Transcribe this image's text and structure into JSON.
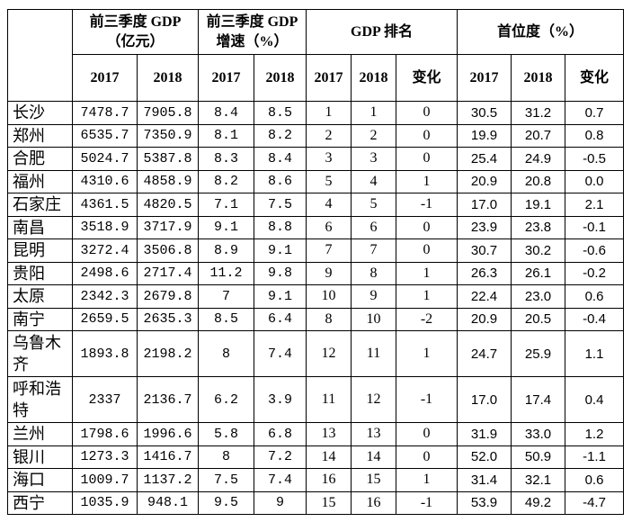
{
  "table": {
    "header": {
      "groups": [
        {
          "lines": [
            "前三季度 GDP",
            "（亿元）"
          ]
        },
        {
          "lines": [
            "前三季度 GDP",
            "增速（%）"
          ]
        },
        {
          "lines": [
            "GDP 排名"
          ]
        },
        {
          "lines": [
            "首位度（%）"
          ]
        }
      ],
      "columns": [
        "2017",
        "2018",
        "2017",
        "2018",
        "2017",
        "2018",
        "变化",
        "2017",
        "2018",
        "变化"
      ]
    },
    "rows": [
      [
        "长沙",
        "7478.7",
        "7905.8",
        "8.4",
        "8.5",
        "1",
        "1",
        "0",
        "30.5",
        "31.2",
        "0.7"
      ],
      [
        "郑州",
        "6535.7",
        "7350.9",
        "8.1",
        "8.2",
        "2",
        "2",
        "0",
        "19.9",
        "20.7",
        "0.8"
      ],
      [
        "合肥",
        "5024.7",
        "5387.8",
        "8.3",
        "8.4",
        "3",
        "3",
        "0",
        "25.4",
        "24.9",
        "-0.5"
      ],
      [
        "福州",
        "4310.6",
        "4858.9",
        "8.2",
        "8.6",
        "5",
        "4",
        "1",
        "20.9",
        "20.8",
        "0.0"
      ],
      [
        "石家庄",
        "4361.5",
        "4820.5",
        "7.1",
        "7.5",
        "4",
        "5",
        "-1",
        "17.0",
        "19.1",
        "2.1"
      ],
      [
        "南昌",
        "3518.9",
        "3717.9",
        "9.1",
        "8.8",
        "6",
        "6",
        "0",
        "23.9",
        "23.8",
        "-0.1"
      ],
      [
        "昆明",
        "3272.4",
        "3506.8",
        "8.9",
        "9.1",
        "7",
        "7",
        "0",
        "30.7",
        "30.2",
        "-0.6"
      ],
      [
        "贵阳",
        "2498.6",
        "2717.4",
        "11.2",
        "9.8",
        "9",
        "8",
        "1",
        "26.3",
        "26.1",
        "-0.2"
      ],
      [
        "太原",
        "2342.3",
        "2679.8",
        "7",
        "9.1",
        "10",
        "9",
        "1",
        "22.4",
        "23.0",
        "0.6"
      ],
      [
        "南宁",
        "2659.5",
        "2635.3",
        "8.5",
        "6.4",
        "8",
        "10",
        "-2",
        "20.9",
        "20.5",
        "-0.4"
      ],
      [
        "乌鲁木齐",
        "1893.8",
        "2198.2",
        "8",
        "7.4",
        "12",
        "11",
        "1",
        "24.7",
        "25.9",
        "1.1"
      ],
      [
        "呼和浩特",
        "2337",
        "2136.7",
        "6.2",
        "3.9",
        "11",
        "12",
        "-1",
        "17.0",
        "17.4",
        "0.4"
      ],
      [
        "兰州",
        "1798.6",
        "1996.6",
        "5.8",
        "6.8",
        "13",
        "13",
        "0",
        "31.9",
        "33.0",
        "1.2"
      ],
      [
        "银川",
        "1273.3",
        "1416.7",
        "8",
        "7.2",
        "14",
        "14",
        "0",
        "52.0",
        "50.9",
        "-1.1"
      ],
      [
        "海口",
        "1009.7",
        "1137.2",
        "7.5",
        "7.4",
        "16",
        "15",
        "1",
        "31.4",
        "32.1",
        "0.6"
      ],
      [
        "西宁",
        "1035.9",
        "948.1",
        "9.5",
        "9",
        "15",
        "16",
        "-1",
        "53.9",
        "49.2",
        "-4.7"
      ]
    ]
  }
}
